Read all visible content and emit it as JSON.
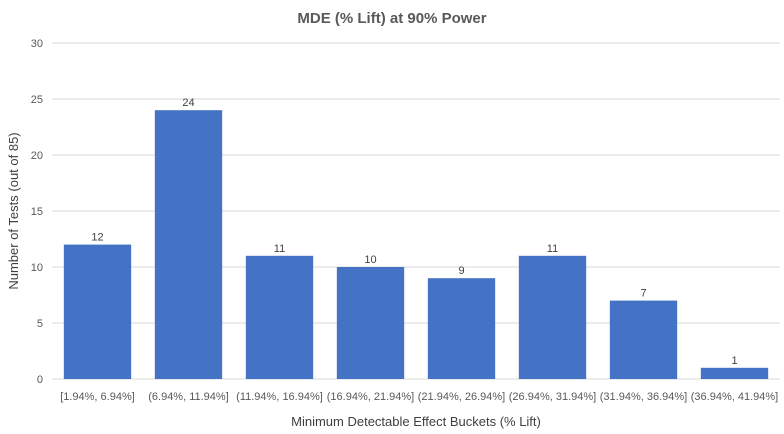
{
  "chart_data": {
    "type": "bar",
    "title": "MDE (% Lift) at 90% Power",
    "xlabel": "Minimum Detectable Effect Buckets (% Lift)",
    "ylabel": "Number of Tests (out of 85)",
    "categories": [
      "[1.94%, 6.94%]",
      "(6.94%, 11.94%]",
      "(11.94%, 16.94%]",
      "(16.94%, 21.94%]",
      "(21.94%, 26.94%]",
      "(26.94%, 31.94%]",
      "(31.94%, 36.94%]",
      "(36.94%, 41.94%]"
    ],
    "values": [
      12,
      24,
      11,
      10,
      9,
      11,
      7,
      1
    ],
    "ylim": [
      0,
      30
    ],
    "yticks": [
      0,
      5,
      10,
      15,
      20,
      25,
      30
    ],
    "grid": true,
    "legend": "none",
    "bar_color": "#4472C4"
  }
}
